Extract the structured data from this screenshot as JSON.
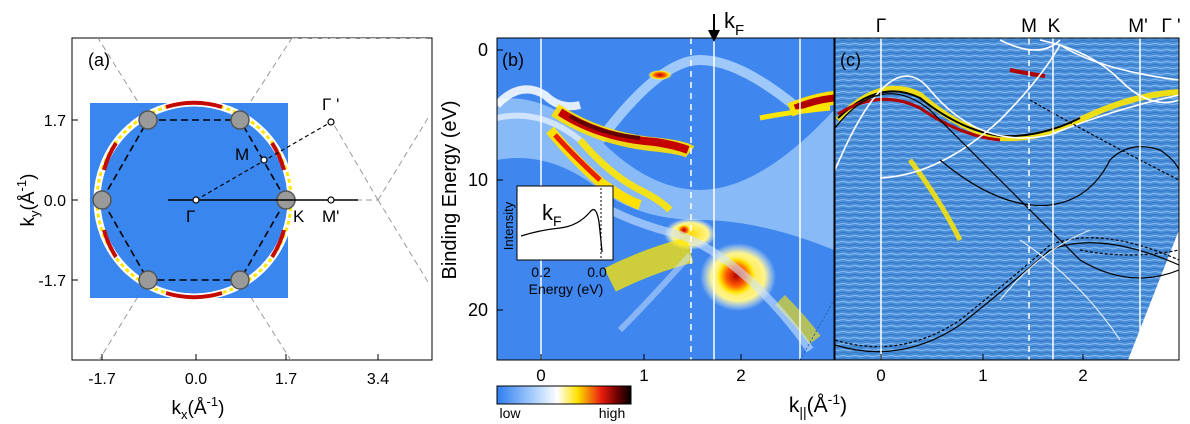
{
  "panel_a": {
    "label": "(a)",
    "points": {
      "gamma_prime": "Γ '",
      "M": "M",
      "gamma": "Γ",
      "K": "K",
      "M_prime": "M'"
    },
    "x_ticks": [
      "-1.7",
      "0.0",
      "1.7",
      "3.4"
    ],
    "y_ticks": [
      "1.7",
      "0.0",
      "-1.7"
    ],
    "xlabel": {
      "main": "k",
      "sub": "x",
      "unit": "(Å",
      "sup": "-1",
      "close": ")"
    },
    "ylabel": {
      "main": "k",
      "sub": "y",
      "unit": "(Å",
      "sup": "-1",
      "close": ")"
    }
  },
  "panel_b": {
    "label": "(b)",
    "y_ticks": [
      "0",
      "10",
      "20"
    ],
    "x_ticks": [
      "0",
      "1",
      "2"
    ],
    "ylabel": "Binding Energy (eV)",
    "kf_main": "k",
    "kf_sub": "F",
    "inset": {
      "title_main": "k",
      "title_sub": "F",
      "ylabel": "Intensity",
      "x_ticks": [
        "0.2",
        "0.0"
      ],
      "xlabel": "Energy (eV)"
    },
    "colorbar": {
      "low": "low",
      "high": "high"
    }
  },
  "panel_c": {
    "label": "(c)",
    "top_labels": [
      "Γ",
      "M",
      "K",
      "M'",
      "Γ '"
    ],
    "x_ticks": [
      "0",
      "1",
      "2"
    ]
  },
  "shared_xlabel": {
    "main": "k",
    "sub": "||",
    "unit": "(Å",
    "sup": "-1",
    "close": ")"
  },
  "colors": {
    "map_background": "#3a86ef",
    "intensity_low": "#2f7df0",
    "intensity_mid": "#ffe200",
    "intensity_high": "#8b0000"
  }
}
